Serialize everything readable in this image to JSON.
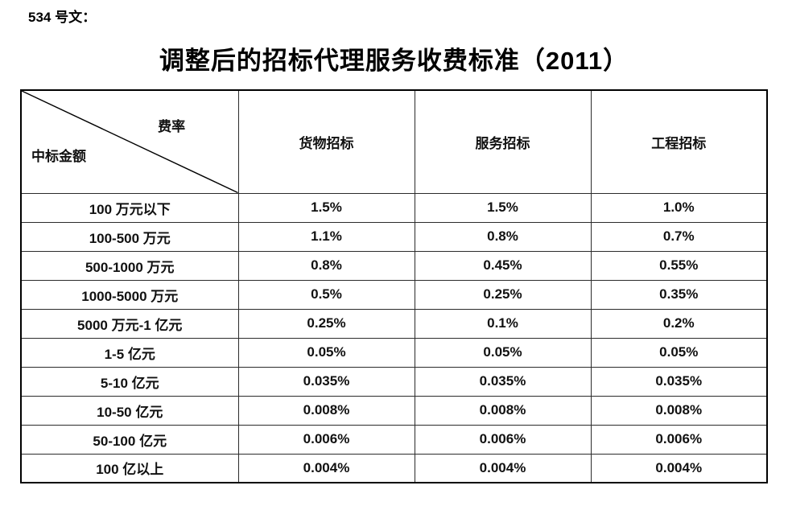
{
  "doc_label": "534 号文：",
  "title": "调整后的招标代理服务收费标准（2011）",
  "table": {
    "corner": {
      "top_right": "费率",
      "bottom_left": "中标金额"
    },
    "columns": [
      "货物招标",
      "服务招标",
      "工程招标"
    ],
    "rows": [
      {
        "label": "100 万元以下",
        "values": [
          "1.5%",
          "1.5%",
          "1.0%"
        ]
      },
      {
        "label": "100-500 万元",
        "values": [
          "1.1%",
          "0.8%",
          "0.7%"
        ]
      },
      {
        "label": "500-1000 万元",
        "values": [
          "0.8%",
          "0.45%",
          "0.55%"
        ]
      },
      {
        "label": "1000-5000 万元",
        "values": [
          "0.5%",
          "0.25%",
          "0.35%"
        ]
      },
      {
        "label": "5000 万元-1 亿元",
        "values": [
          "0.25%",
          "0.1%",
          "0.2%"
        ]
      },
      {
        "label": "1-5 亿元",
        "values": [
          "0.05%",
          "0.05%",
          "0.05%"
        ]
      },
      {
        "label": "5-10 亿元",
        "values": [
          "0.035%",
          "0.035%",
          "0.035%"
        ]
      },
      {
        "label": "10-50 亿元",
        "values": [
          "0.008%",
          "0.008%",
          "0.008%"
        ]
      },
      {
        "label": "50-100 亿元",
        "values": [
          "0.006%",
          "0.006%",
          "0.006%"
        ]
      },
      {
        "label": "100 亿以上",
        "values": [
          "0.004%",
          "0.004%",
          "0.004%"
        ]
      }
    ]
  },
  "colors": {
    "text": "#000000",
    "border": "#2b2b2b",
    "background": "#ffffff"
  }
}
